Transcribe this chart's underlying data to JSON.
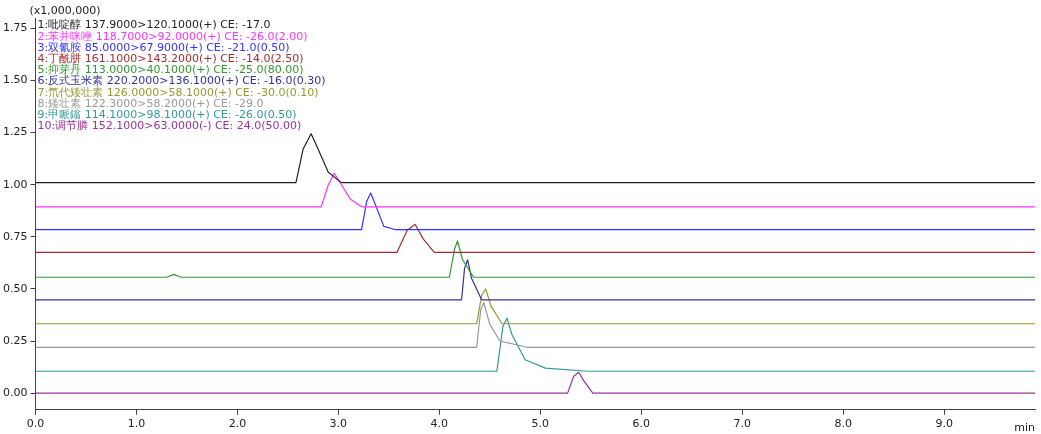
{
  "chart_data": {
    "type": "line",
    "xlabel": "min",
    "ylabel": "(x1,000,000)",
    "xlim": [
      0,
      9.9
    ],
    "ylim": [
      -0.08,
      1.8
    ],
    "xticks": [
      {
        "value": 0,
        "label": "0.0"
      },
      {
        "value": 1,
        "label": "1.0"
      },
      {
        "value": 2,
        "label": "2.0"
      },
      {
        "value": 3,
        "label": "3.0"
      },
      {
        "value": 4,
        "label": "4.0"
      },
      {
        "value": 5,
        "label": "5.0"
      },
      {
        "value": 6,
        "label": "6.0"
      },
      {
        "value": 7,
        "label": "7.0"
      },
      {
        "value": 8,
        "label": "8.0"
      },
      {
        "value": 9,
        "label": "9.0"
      }
    ],
    "yticks": [
      {
        "value": 0,
        "label": "0.00"
      },
      {
        "value": 0.25,
        "label": "0.25"
      },
      {
        "value": 0.5,
        "label": "0.50"
      },
      {
        "value": 0.75,
        "label": "0.75"
      },
      {
        "value": 1,
        "label": "1.00"
      },
      {
        "value": 1.25,
        "label": "1.25"
      },
      {
        "value": 1.5,
        "label": "1.50"
      },
      {
        "value": 1.75,
        "label": "1.75"
      }
    ],
    "legend": "top left",
    "marker": "none",
    "line_style": "solid",
    "series": [
      {
        "name": "1:吡啶醇 137.9000>120.1000(+) CE: -17.0",
        "color": "#222222",
        "x": [
          0,
          2.58,
          2.65,
          2.73,
          2.8,
          2.9,
          3.03,
          9.9
        ],
        "values": [
          1.01,
          1.01,
          1.17,
          1.245,
          1.17,
          1.06,
          1.01,
          1.01
        ]
      },
      {
        "name": "2:苯并咪唑 118.7000>92.0000(+) CE: -26.0(2.00)",
        "color": "#ff33ff",
        "x": [
          0,
          2.83,
          2.9,
          2.96,
          3.03,
          3.12,
          3.23,
          9.9
        ],
        "values": [
          0.894,
          0.894,
          1.0,
          1.055,
          1.0,
          0.93,
          0.894,
          0.894
        ]
      },
      {
        "name": "3:双氰胺 85.0000>67.9000(+) CE: -21.0(0.50)",
        "color": "#3333ff",
        "x": [
          0,
          3.23,
          3.28,
          3.32,
          3.37,
          3.45,
          3.56,
          9.9
        ],
        "values": [
          0.785,
          0.785,
          0.92,
          0.96,
          0.9,
          0.8,
          0.785,
          0.785
        ]
      },
      {
        "name": "4:丁酰肼 161.1000>143.2000(+) CE: -14.0(2.50)",
        "color": "#a03030",
        "x": [
          0,
          3.58,
          3.68,
          3.76,
          3.84,
          3.95,
          9.9
        ],
        "values": [
          0.675,
          0.675,
          0.78,
          0.81,
          0.74,
          0.675,
          0.675
        ]
      },
      {
        "name": "5:抑芽丹 113.0000>40.1000(+) CE: -25.0(80.00)",
        "color": "#339933",
        "x": [
          0,
          1.3,
          1.37,
          1.44,
          4.1,
          4.15,
          4.18,
          4.23,
          4.34,
          9.9
        ],
        "values": [
          0.556,
          0.556,
          0.57,
          0.556,
          0.556,
          0.69,
          0.73,
          0.64,
          0.556,
          0.556
        ]
      },
      {
        "name": "6:反式玉米素 220.2000>136.1000(+) CE: -16.0(0.30)",
        "color": "#333399",
        "x": [
          0,
          4.22,
          4.25,
          4.28,
          4.32,
          4.42,
          9.9
        ],
        "values": [
          0.447,
          0.447,
          0.6,
          0.64,
          0.55,
          0.447,
          0.447
        ]
      },
      {
        "name": "7:氘代矮壮素 126.0000>58.1000(+) CE: -30.0(0.10)",
        "color": "#999933",
        "x": [
          0,
          4.37,
          4.42,
          4.46,
          4.51,
          4.62,
          9.9
        ],
        "values": [
          0.333,
          0.333,
          0.47,
          0.5,
          0.42,
          0.333,
          0.333
        ]
      },
      {
        "name": "8:矮壮素 122.3000>58.2000(+) CE: -29.0",
        "color": "#999999",
        "x": [
          0,
          4.37,
          4.41,
          4.44,
          4.5,
          4.6,
          4.87,
          9.9
        ],
        "values": [
          0.22,
          0.22,
          0.4,
          0.435,
          0.33,
          0.25,
          0.22,
          0.22
        ]
      },
      {
        "name": "9:甲哌鎓 114.1000>98.1000(+) CE: -26.0(0.50)",
        "color": "#339999",
        "x": [
          0,
          4.57,
          4.63,
          4.67,
          4.72,
          4.85,
          5.05,
          5.47,
          9.9
        ],
        "values": [
          0.105,
          0.105,
          0.32,
          0.36,
          0.28,
          0.16,
          0.12,
          0.105,
          0.105
        ]
      },
      {
        "name": "10:调节膦 152.1000>63.0000(-) CE: 24.0(50.00)",
        "color": "#993399",
        "x": [
          0,
          5.27,
          5.33,
          5.38,
          5.43,
          5.52,
          9.9
        ],
        "values": [
          0,
          0,
          0.08,
          0.1,
          0.06,
          0,
          0
        ]
      }
    ]
  }
}
